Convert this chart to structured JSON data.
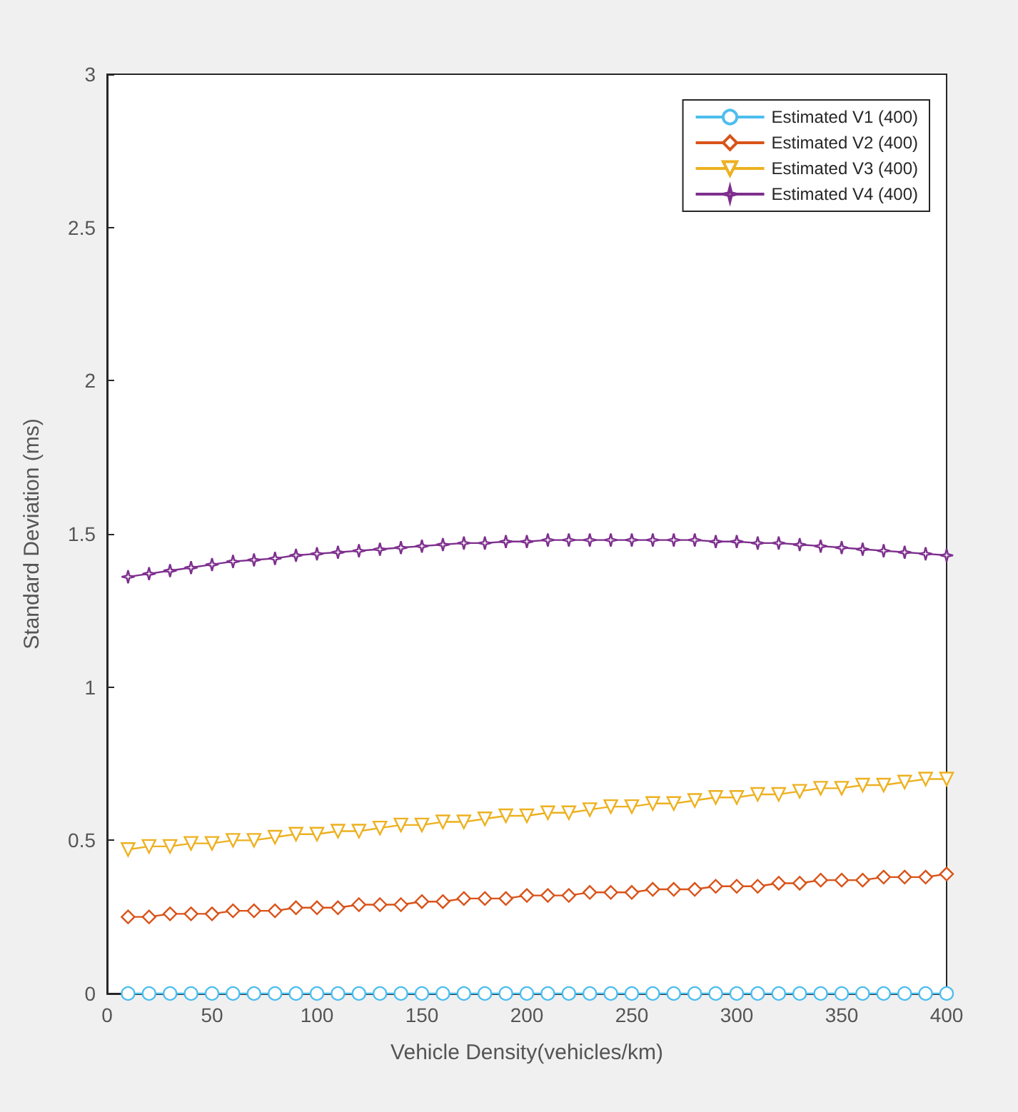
{
  "chart_data": {
    "type": "line",
    "xlabel": "Vehicle Density(vehicles/km)",
    "ylabel": "Standard Deviation (ms)",
    "x": [
      10,
      20,
      30,
      40,
      50,
      60,
      70,
      80,
      90,
      100,
      110,
      120,
      130,
      140,
      150,
      160,
      170,
      180,
      190,
      200,
      210,
      220,
      230,
      240,
      250,
      260,
      270,
      280,
      290,
      300,
      310,
      320,
      330,
      340,
      350,
      360,
      370,
      380,
      390,
      400
    ],
    "series": [
      {
        "name": "Estimated V1 (400)",
        "color": "#4dbeee",
        "marker": "circle",
        "values": [
          0,
          0,
          0,
          0,
          0,
          0,
          0,
          0,
          0,
          0,
          0,
          0,
          0,
          0,
          0,
          0,
          0,
          0,
          0,
          0,
          0,
          0,
          0,
          0,
          0,
          0,
          0,
          0,
          0,
          0,
          0,
          0,
          0,
          0,
          0,
          0,
          0,
          0,
          0,
          0
        ]
      },
      {
        "name": "Estimated V2 (400)",
        "color": "#d95319",
        "marker": "diamond",
        "values": [
          0.25,
          0.25,
          0.26,
          0.26,
          0.26,
          0.27,
          0.27,
          0.27,
          0.28,
          0.28,
          0.28,
          0.29,
          0.29,
          0.29,
          0.3,
          0.3,
          0.31,
          0.31,
          0.31,
          0.32,
          0.32,
          0.32,
          0.33,
          0.33,
          0.33,
          0.34,
          0.34,
          0.34,
          0.35,
          0.35,
          0.35,
          0.36,
          0.36,
          0.37,
          0.37,
          0.37,
          0.38,
          0.38,
          0.38,
          0.39
        ]
      },
      {
        "name": "Estimated V3 (400)",
        "color": "#edb120",
        "marker": "triangle",
        "values": [
          0.47,
          0.48,
          0.48,
          0.49,
          0.49,
          0.5,
          0.5,
          0.51,
          0.52,
          0.52,
          0.53,
          0.53,
          0.54,
          0.55,
          0.55,
          0.56,
          0.56,
          0.57,
          0.58,
          0.58,
          0.59,
          0.59,
          0.6,
          0.61,
          0.61,
          0.62,
          0.62,
          0.63,
          0.64,
          0.64,
          0.65,
          0.65,
          0.66,
          0.67,
          0.67,
          0.68,
          0.68,
          0.69,
          0.7,
          0.7
        ]
      },
      {
        "name": "Estimated V4 (400)",
        "color": "#7e2f8e",
        "marker": "star",
        "values": [
          1.36,
          1.37,
          1.38,
          1.39,
          1.4,
          1.41,
          1.415,
          1.42,
          1.43,
          1.435,
          1.44,
          1.445,
          1.45,
          1.455,
          1.46,
          1.465,
          1.47,
          1.47,
          1.475,
          1.475,
          1.48,
          1.48,
          1.48,
          1.48,
          1.48,
          1.48,
          1.48,
          1.48,
          1.475,
          1.475,
          1.47,
          1.47,
          1.465,
          1.46,
          1.455,
          1.45,
          1.445,
          1.44,
          1.435,
          1.43
        ]
      }
    ],
    "xlim": [
      0,
      400
    ],
    "xticks": [
      0,
      50,
      100,
      150,
      200,
      250,
      300,
      350,
      400
    ],
    "ylim": [
      0,
      3
    ],
    "yticks": [
      0,
      0.5,
      1,
      1.5,
      2,
      2.5,
      3
    ],
    "legend": "top right",
    "grid": false,
    "line_style": "solid"
  }
}
